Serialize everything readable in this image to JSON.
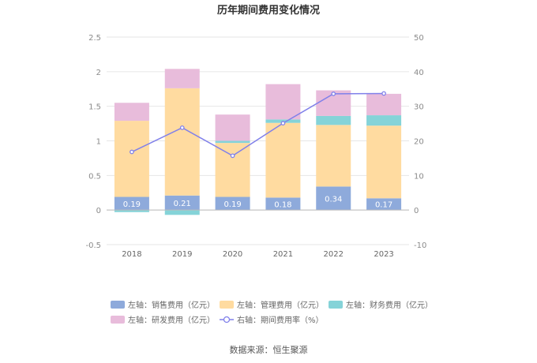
{
  "chart_data": {
    "type": "bar",
    "title": "历年期间费用变化情况",
    "categories": [
      "2018",
      "2019",
      "2020",
      "2021",
      "2022",
      "2023"
    ],
    "stacked": true,
    "left_axis": {
      "ylim": [
        -0.5,
        2.5
      ],
      "ticks": [
        "-0.5",
        "0",
        "0.5",
        "1",
        "1.5",
        "2",
        "2.5"
      ]
    },
    "right_axis": {
      "ylim": [
        -10,
        50
      ],
      "ticks": [
        "-10",
        "0",
        "10",
        "20",
        "30",
        "40",
        "50"
      ]
    },
    "series": [
      {
        "name": "左轴：销售费用（亿元）",
        "type": "bar",
        "axis": "left",
        "color": "#8eaadb",
        "values": [
          0.19,
          0.21,
          0.19,
          0.18,
          0.34,
          0.17
        ],
        "labels": [
          "0.19",
          "0.21",
          "0.19",
          "0.18",
          "0.34",
          "0.17"
        ]
      },
      {
        "name": "左轴：管理费用（亿元）",
        "type": "bar",
        "axis": "left",
        "color": "#ffdba0",
        "values": [
          1.1,
          1.55,
          0.78,
          1.08,
          0.89,
          1.05
        ]
      },
      {
        "name": "左轴：财务费用（亿元）",
        "type": "bar",
        "axis": "left",
        "color": "#85d3d8",
        "values": [
          -0.03,
          -0.07,
          0.03,
          0.05,
          0.13,
          0.15
        ]
      },
      {
        "name": "左轴：研发费用（亿元）",
        "type": "bar",
        "axis": "left",
        "color": "#e8bcdb",
        "values": [
          0.26,
          0.28,
          0.38,
          0.51,
          0.37,
          0.31
        ]
      },
      {
        "name": "右轴：期间费用率（%）",
        "type": "line",
        "axis": "right",
        "color": "#8080ea",
        "values": [
          16.8,
          23.8,
          15.7,
          25.1,
          33.6,
          33.7
        ]
      }
    ],
    "legend_position": "bottom",
    "grid": true
  },
  "source": "数据来源：恒生聚源"
}
